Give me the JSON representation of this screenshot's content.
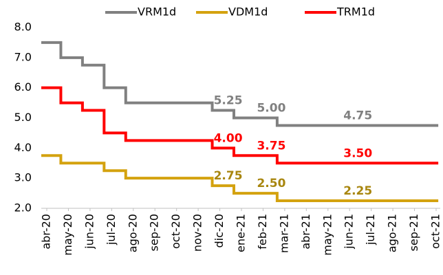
{
  "chart_data": {
    "type": "line",
    "step": true,
    "categories": [
      "abr-20",
      "may-20",
      "jun-20",
      "jul-20",
      "ago-20",
      "sep-20",
      "oct-20",
      "nov-20",
      "dic-20",
      "ene-21",
      "feb-21",
      "mar-21",
      "abr-21",
      "may-21",
      "jun-21",
      "jul-21",
      "ago-21",
      "sep-21",
      "oct-21"
    ],
    "series": [
      {
        "name": "VRM1d",
        "color": "#808080",
        "values": [
          7.5,
          7.0,
          6.75,
          6.0,
          5.5,
          5.5,
          5.5,
          5.5,
          5.25,
          5.0,
          5.0,
          4.75,
          4.75,
          4.75,
          4.75,
          4.75,
          4.75,
          4.75,
          4.75
        ],
        "value_labels": [
          null,
          null,
          null,
          null,
          null,
          null,
          null,
          null,
          "5.25",
          null,
          "5.00",
          null,
          null,
          null,
          "4.75",
          null,
          null,
          null,
          null
        ]
      },
      {
        "name": "VDM1d",
        "color": "#d4a20f",
        "label_color": "#a8860f",
        "values": [
          3.75,
          3.5,
          3.5,
          3.25,
          3.0,
          3.0,
          3.0,
          3.0,
          2.75,
          2.5,
          2.5,
          2.25,
          2.25,
          2.25,
          2.25,
          2.25,
          2.25,
          2.25,
          2.25
        ],
        "value_labels": [
          null,
          null,
          null,
          null,
          null,
          null,
          null,
          null,
          "2.75",
          null,
          "2.50",
          null,
          null,
          null,
          "2.25",
          null,
          null,
          null,
          null
        ]
      },
      {
        "name": "TRM1d",
        "color": "#ff0000",
        "values": [
          6.0,
          5.5,
          5.25,
          4.5,
          4.25,
          4.25,
          4.25,
          4.25,
          4.0,
          3.75,
          3.75,
          3.5,
          3.5,
          3.5,
          3.5,
          3.5,
          3.5,
          3.5,
          3.5
        ],
        "value_labels": [
          null,
          null,
          null,
          null,
          null,
          null,
          null,
          null,
          "4.00",
          null,
          "3.75",
          null,
          null,
          null,
          "3.50",
          null,
          null,
          null,
          null
        ]
      }
    ],
    "ylim": [
      2.0,
      8.0
    ],
    "yticks": [
      {
        "value": 2.0,
        "label": "2.0"
      },
      {
        "value": 3.0,
        "label": "3.0"
      },
      {
        "value": 4.0,
        "label": "4.0"
      },
      {
        "value": 5.0,
        "label": "5.0"
      },
      {
        "value": 6.0,
        "label": "6.0"
      },
      {
        "value": 7.0,
        "label": "7.0"
      },
      {
        "value": 8.0,
        "label": "8.0"
      }
    ],
    "grid": false,
    "legend": "top"
  }
}
